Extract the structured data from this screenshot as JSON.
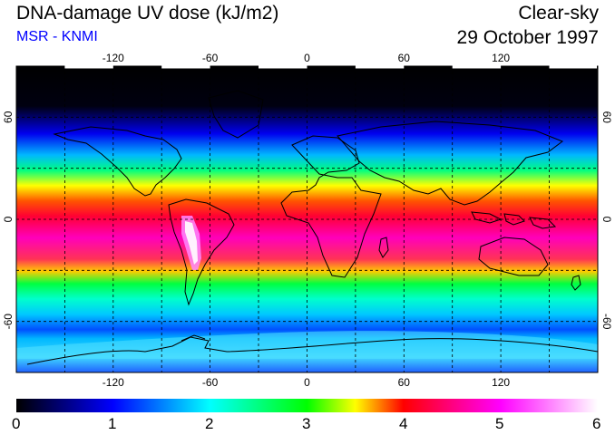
{
  "header": {
    "title": "DNA-damage UV dose (kJ/m2)",
    "subtitle": "MSR - KNMI",
    "condition": "Clear-sky",
    "date": "29 October 1997"
  },
  "map": {
    "projection": "equirectangular",
    "lon_range": [
      -180,
      180
    ],
    "lat_range": [
      -90,
      90
    ],
    "lon_ticks": [
      "-120",
      "-60",
      "0",
      "60",
      "120"
    ],
    "lat_ticks": [
      "60",
      "0",
      "-60"
    ],
    "grid": "dashed every 30 degrees",
    "coastlines": true
  },
  "colorbar": {
    "min": 0,
    "max": 6,
    "labels": [
      "0",
      "1",
      "2",
      "3",
      "4",
      "5",
      "6"
    ],
    "colors": [
      "#000000",
      "#0000ff",
      "#00ffff",
      "#00ff00",
      "#ffff00",
      "#ff0000",
      "#ff00ff",
      "#ffffff"
    ]
  }
}
